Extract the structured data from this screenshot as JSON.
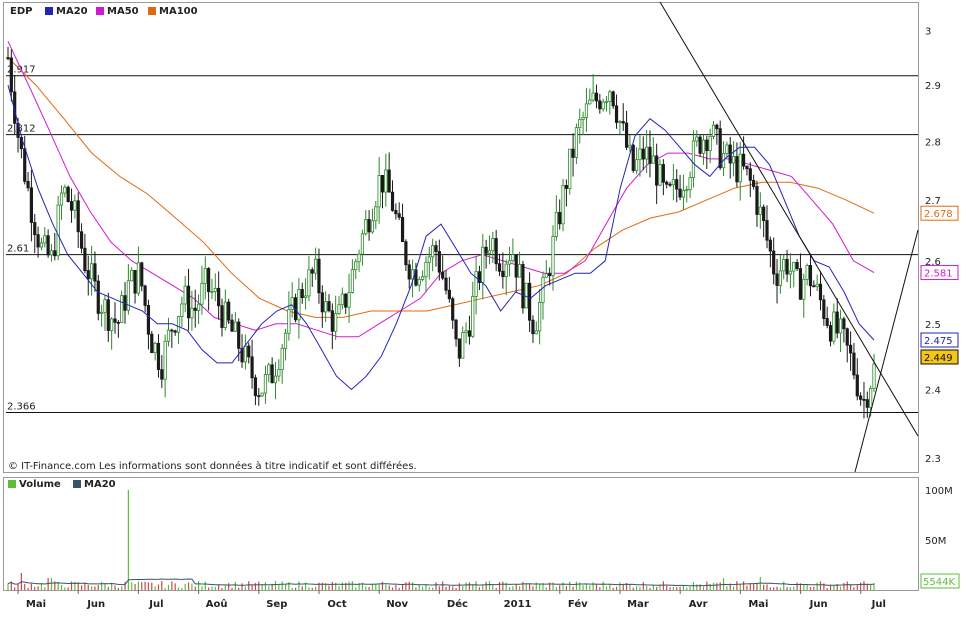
{
  "colors": {
    "up": "#2d8a2d",
    "down": "#1a1a1a",
    "ma20": "#2424b8",
    "ma50": "#d21ad2",
    "ma100": "#e06a12",
    "volume_up": "#5bbd3a",
    "volume_down": "#c94a4a",
    "volume_ma": "#34546e",
    "frame": "#9a9a9a",
    "price_tag_bg": "#f5c518"
  },
  "legend": {
    "symbol": "EDP",
    "ma20": "MA20",
    "ma50": "MA50",
    "ma100": "MA100",
    "volume": "Volume",
    "volume_ma": "MA20"
  },
  "copyright": "© IT-Finance.com Les informations sont données à titre indicatif et sont différées.",
  "chart_data": [
    {
      "type": "candlestick",
      "yscale": "log",
      "ylim": [
        2.28,
        3.05
      ],
      "y_ticks": [
        "3",
        "2.9",
        "2.8",
        "2.7",
        "2.6",
        "2.5",
        "2.4",
        "2.3"
      ],
      "x_months": [
        "Mai",
        "Jun",
        "Jul",
        "Aoû",
        "Sep",
        "Oct",
        "Nov",
        "Déc",
        "2011",
        "Fév",
        "Mar",
        "Avr",
        "Mai",
        "Jun",
        "Jul"
      ],
      "horizontal_levels": [
        {
          "value": 2.917,
          "label": "2.917"
        },
        {
          "value": 2.812,
          "label": "2.812"
        },
        {
          "value": 2.61,
          "label": "2.61"
        },
        {
          "value": 2.366,
          "label": "2.366"
        }
      ],
      "last_values": {
        "ma100": "2.678",
        "ma50": "2.581",
        "ma20": "2.475",
        "close": "2.449"
      },
      "close_path": [
        2.95,
        2.8,
        2.7,
        2.62,
        2.6,
        2.72,
        2.68,
        2.6,
        2.55,
        2.52,
        2.5,
        2.56,
        2.58,
        2.48,
        2.44,
        2.5,
        2.54,
        2.52,
        2.56,
        2.54,
        2.5,
        2.47,
        2.43,
        2.4,
        2.42,
        2.47,
        2.52,
        2.56,
        2.58,
        2.52,
        2.5,
        2.55,
        2.62,
        2.68,
        2.74,
        2.7,
        2.62,
        2.58,
        2.6,
        2.62,
        2.55,
        2.45,
        2.5,
        2.58,
        2.64,
        2.6,
        2.62,
        2.55,
        2.5,
        2.56,
        2.65,
        2.74,
        2.82,
        2.86,
        2.88,
        2.9,
        2.82,
        2.75,
        2.78,
        2.76,
        2.7,
        2.72,
        2.75,
        2.8,
        2.82,
        2.78,
        2.76,
        2.75,
        2.72,
        2.65,
        2.58,
        2.6,
        2.56,
        2.58,
        2.54,
        2.5,
        2.48,
        2.44,
        2.38,
        2.43
      ],
      "ma20": [
        2.9,
        2.8,
        2.72,
        2.66,
        2.61,
        2.58,
        2.55,
        2.54,
        2.53,
        2.52,
        2.5,
        2.5,
        2.49,
        2.46,
        2.44,
        2.44,
        2.47,
        2.5,
        2.52,
        2.53,
        2.5,
        2.46,
        2.42,
        2.4,
        2.42,
        2.45,
        2.5,
        2.56,
        2.64,
        2.66,
        2.62,
        2.58,
        2.56,
        2.52,
        2.55,
        2.54,
        2.56,
        2.57,
        2.58,
        2.58,
        2.6,
        2.72,
        2.81,
        2.84,
        2.82,
        2.79,
        2.76,
        2.74,
        2.77,
        2.79,
        2.79,
        2.76,
        2.7,
        2.64,
        2.6,
        2.59,
        2.55,
        2.5,
        2.475
      ],
      "ma50": [
        2.98,
        2.9,
        2.82,
        2.74,
        2.68,
        2.63,
        2.6,
        2.58,
        2.56,
        2.54,
        2.51,
        2.5,
        2.49,
        2.5,
        2.5,
        2.49,
        2.48,
        2.48,
        2.5,
        2.52,
        2.54,
        2.58,
        2.6,
        2.61,
        2.6,
        2.59,
        2.58,
        2.58,
        2.6,
        2.66,
        2.72,
        2.76,
        2.78,
        2.78,
        2.77,
        2.77,
        2.76,
        2.75,
        2.74,
        2.7,
        2.66,
        2.6,
        2.581
      ],
      "ma100": [
        2.95,
        2.9,
        2.84,
        2.78,
        2.74,
        2.71,
        2.67,
        2.63,
        2.58,
        2.54,
        2.52,
        2.51,
        2.51,
        2.52,
        2.52,
        2.52,
        2.53,
        2.54,
        2.55,
        2.56,
        2.58,
        2.62,
        2.65,
        2.67,
        2.68,
        2.7,
        2.72,
        2.73,
        2.73,
        2.72,
        2.7,
        2.678
      ],
      "trendlines": "two straight annotation lines drawn from the top edge down to the right"
    },
    {
      "type": "bar",
      "series_name": "Volume",
      "y_ticks": [
        "100M",
        "50M"
      ],
      "last_value_label": "5544K",
      "typical_volume_millions": 5,
      "spikes_millions": [
        {
          "month_index": 2.0,
          "value": 100
        },
        {
          "month_index": 0.2,
          "value": 17
        },
        {
          "month_index": 0.7,
          "value": 12
        },
        {
          "month_index": 12.0,
          "value": 12
        },
        {
          "month_index": 12.6,
          "value": 13
        }
      ]
    }
  ]
}
